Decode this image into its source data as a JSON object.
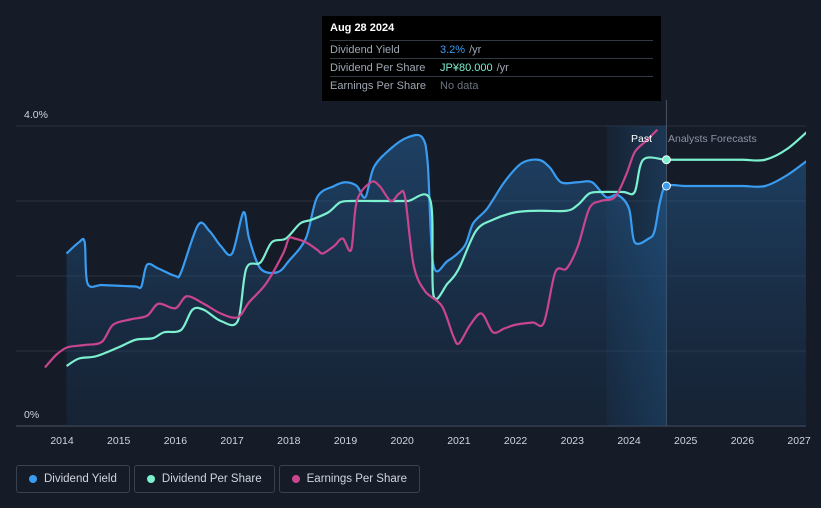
{
  "tooltip": {
    "date": "Aug 28 2024",
    "rows": [
      {
        "label": "Dividend Yield",
        "value": "3.2%",
        "unit": "/yr",
        "color": "#3a9cf0"
      },
      {
        "label": "Dividend Per Share",
        "value": "JP¥80.000",
        "unit": "/yr",
        "color": "#7df0d0"
      },
      {
        "label": "Earnings Per Share",
        "value": "No data",
        "unit": "",
        "color": "#6b7380"
      }
    ]
  },
  "region_labels": {
    "past": "Past",
    "forecast": "Analysts Forecasts"
  },
  "legend": [
    {
      "label": "Dividend Yield",
      "color": "#3a9cf0"
    },
    {
      "label": "Dividend Per Share",
      "color": "#7df0d0"
    },
    {
      "label": "Earnings Per Share",
      "color": "#c9468f"
    }
  ],
  "chart_data": {
    "type": "line",
    "x_ticks": [
      "2014",
      "2015",
      "2016",
      "2017",
      "2018",
      "2019",
      "2020",
      "2021",
      "2022",
      "2023",
      "2024",
      "2025",
      "2026",
      "2027"
    ],
    "y_tick_labels": [
      "4.0%",
      "0%"
    ],
    "ylim": [
      0,
      4.0
    ],
    "xlim": [
      2013.7,
      2027.25
    ],
    "past_start": 2023.6,
    "now": 2024.66,
    "grid": true,
    "legend_position": "bottom-left",
    "series": [
      {
        "name": "Dividend Yield",
        "axis": "percent",
        "color": "#3a9cf0",
        "fill": true,
        "points": [
          [
            2014.08,
            2.3
          ],
          [
            2014.3,
            2.45
          ],
          [
            2014.4,
            2.45
          ],
          [
            2014.45,
            1.9
          ],
          [
            2014.7,
            1.88
          ],
          [
            2015.0,
            1.87
          ],
          [
            2015.3,
            1.86
          ],
          [
            2015.4,
            1.86
          ],
          [
            2015.5,
            2.15
          ],
          [
            2015.7,
            2.1
          ],
          [
            2016.0,
            2.0
          ],
          [
            2016.1,
            2.05
          ],
          [
            2016.4,
            2.68
          ],
          [
            2016.6,
            2.6
          ],
          [
            2016.8,
            2.4
          ],
          [
            2017.0,
            2.3
          ],
          [
            2017.2,
            2.85
          ],
          [
            2017.3,
            2.5
          ],
          [
            2017.5,
            2.1
          ],
          [
            2017.8,
            2.05
          ],
          [
            2018.0,
            2.2
          ],
          [
            2018.3,
            2.5
          ],
          [
            2018.5,
            3.05
          ],
          [
            2018.8,
            3.2
          ],
          [
            2019.0,
            3.25
          ],
          [
            2019.2,
            3.2
          ],
          [
            2019.35,
            3.05
          ],
          [
            2019.5,
            3.45
          ],
          [
            2019.8,
            3.7
          ],
          [
            2020.1,
            3.85
          ],
          [
            2020.35,
            3.85
          ],
          [
            2020.45,
            3.5
          ],
          [
            2020.55,
            2.15
          ],
          [
            2020.8,
            2.2
          ],
          [
            2021.1,
            2.4
          ],
          [
            2021.25,
            2.7
          ],
          [
            2021.5,
            2.9
          ],
          [
            2021.8,
            3.25
          ],
          [
            2022.1,
            3.5
          ],
          [
            2022.4,
            3.55
          ],
          [
            2022.6,
            3.45
          ],
          [
            2022.8,
            3.25
          ],
          [
            2023.1,
            3.25
          ],
          [
            2023.35,
            3.25
          ],
          [
            2023.6,
            3.05
          ],
          [
            2023.8,
            3.08
          ],
          [
            2024.0,
            2.9
          ],
          [
            2024.1,
            2.45
          ],
          [
            2024.35,
            2.5
          ],
          [
            2024.45,
            2.6
          ],
          [
            2024.55,
            3.0
          ],
          [
            2024.66,
            3.2
          ],
          [
            2025.0,
            3.2
          ],
          [
            2025.5,
            3.2
          ],
          [
            2026.0,
            3.2
          ],
          [
            2026.4,
            3.2
          ],
          [
            2026.8,
            3.35
          ],
          [
            2027.25,
            3.6
          ]
        ]
      },
      {
        "name": "Dividend Per Share",
        "axis": "relative",
        "color": "#7df0d0",
        "fill": false,
        "points": [
          [
            2014.08,
            0.8
          ],
          [
            2014.3,
            0.9
          ],
          [
            2014.6,
            0.93
          ],
          [
            2015.0,
            1.05
          ],
          [
            2015.3,
            1.15
          ],
          [
            2015.6,
            1.17
          ],
          [
            2015.8,
            1.25
          ],
          [
            2016.1,
            1.28
          ],
          [
            2016.3,
            1.55
          ],
          [
            2016.5,
            1.55
          ],
          [
            2016.8,
            1.4
          ],
          [
            2017.1,
            1.4
          ],
          [
            2017.25,
            2.1
          ],
          [
            2017.5,
            2.18
          ],
          [
            2017.7,
            2.45
          ],
          [
            2017.95,
            2.5
          ],
          [
            2018.2,
            2.7
          ],
          [
            2018.4,
            2.75
          ],
          [
            2018.7,
            2.85
          ],
          [
            2018.9,
            2.98
          ],
          [
            2019.1,
            3.0
          ],
          [
            2019.5,
            3.0
          ],
          [
            2019.8,
            3.0
          ],
          [
            2020.1,
            3.0
          ],
          [
            2020.5,
            3.0
          ],
          [
            2020.55,
            1.75
          ],
          [
            2020.8,
            1.9
          ],
          [
            2021.0,
            2.1
          ],
          [
            2021.3,
            2.6
          ],
          [
            2021.6,
            2.75
          ],
          [
            2022.0,
            2.85
          ],
          [
            2022.4,
            2.87
          ],
          [
            2022.9,
            2.87
          ],
          [
            2023.1,
            2.95
          ],
          [
            2023.3,
            3.1
          ],
          [
            2023.5,
            3.12
          ],
          [
            2023.9,
            3.12
          ],
          [
            2024.1,
            3.12
          ],
          [
            2024.25,
            3.55
          ],
          [
            2024.66,
            3.55
          ],
          [
            2025.0,
            3.55
          ],
          [
            2025.5,
            3.55
          ],
          [
            2026.0,
            3.55
          ],
          [
            2026.4,
            3.55
          ],
          [
            2026.8,
            3.7
          ],
          [
            2027.25,
            4.0
          ]
        ]
      },
      {
        "name": "Earnings Per Share",
        "axis": "relative",
        "color": "#c9468f",
        "fill": false,
        "points": [
          [
            2013.7,
            0.78
          ],
          [
            2013.9,
            0.95
          ],
          [
            2014.1,
            1.05
          ],
          [
            2014.4,
            1.08
          ],
          [
            2014.7,
            1.12
          ],
          [
            2014.9,
            1.35
          ],
          [
            2015.2,
            1.42
          ],
          [
            2015.5,
            1.47
          ],
          [
            2015.7,
            1.63
          ],
          [
            2016.0,
            1.57
          ],
          [
            2016.2,
            1.73
          ],
          [
            2016.5,
            1.63
          ],
          [
            2016.8,
            1.5
          ],
          [
            2017.1,
            1.45
          ],
          [
            2017.3,
            1.65
          ],
          [
            2017.6,
            1.9
          ],
          [
            2017.9,
            2.3
          ],
          [
            2018.0,
            2.5
          ],
          [
            2018.1,
            2.5
          ],
          [
            2018.3,
            2.45
          ],
          [
            2018.5,
            2.35
          ],
          [
            2018.6,
            2.3
          ],
          [
            2018.8,
            2.4
          ],
          [
            2018.95,
            2.5
          ],
          [
            2019.1,
            2.35
          ],
          [
            2019.2,
            3.0
          ],
          [
            2019.45,
            3.25
          ],
          [
            2019.6,
            3.2
          ],
          [
            2019.8,
            3.0
          ],
          [
            2019.95,
            3.1
          ],
          [
            2020.05,
            3.05
          ],
          [
            2020.2,
            2.15
          ],
          [
            2020.4,
            1.8
          ],
          [
            2020.7,
            1.6
          ],
          [
            2020.9,
            1.2
          ],
          [
            2021.0,
            1.1
          ],
          [
            2021.2,
            1.35
          ],
          [
            2021.4,
            1.5
          ],
          [
            2021.6,
            1.25
          ],
          [
            2021.8,
            1.3
          ],
          [
            2022.0,
            1.35
          ],
          [
            2022.3,
            1.38
          ],
          [
            2022.5,
            1.38
          ],
          [
            2022.7,
            2.05
          ],
          [
            2022.9,
            2.1
          ],
          [
            2023.1,
            2.4
          ],
          [
            2023.3,
            2.9
          ],
          [
            2023.5,
            3.0
          ],
          [
            2023.75,
            3.05
          ],
          [
            2023.95,
            3.35
          ],
          [
            2024.1,
            3.65
          ],
          [
            2024.3,
            3.8
          ],
          [
            2024.5,
            3.95
          ]
        ]
      }
    ],
    "markers": [
      {
        "series": "Dividend Yield",
        "x": 2024.66,
        "y": 3.2
      },
      {
        "series": "Dividend Per Share",
        "x": 2024.66,
        "y": 3.55
      }
    ]
  }
}
